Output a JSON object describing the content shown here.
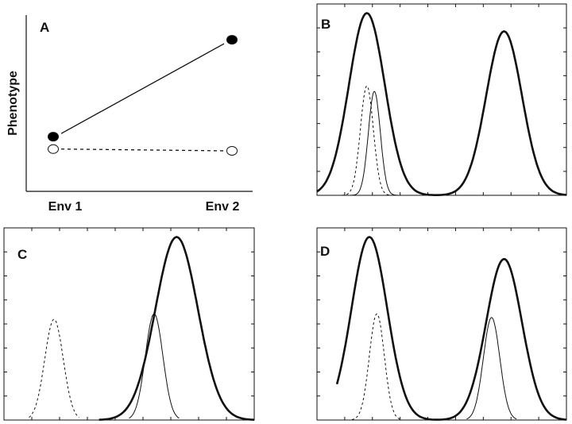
{
  "chart_data": [
    {
      "panel": "A",
      "type": "scatter",
      "categories": [
        "Env 1",
        "Env 2"
      ],
      "ylabel": "Phenotype",
      "ylim": [
        0,
        10
      ],
      "series": [
        {
          "style": "filled-solid",
          "values": [
            3.1,
            8.6
          ]
        },
        {
          "style": "open-dashed",
          "values": [
            2.4,
            2.3
          ]
        }
      ]
    },
    {
      "panel": "B",
      "type": "line",
      "xlim": [
        0,
        10
      ],
      "ylim": [
        0,
        1.05
      ],
      "series": [
        {
          "style": "thick",
          "components": [
            {
              "mu": 2.0,
              "sigma": 0.72,
              "amp": 1.0
            },
            {
              "mu": 7.5,
              "sigma": 0.72,
              "amp": 0.9
            }
          ],
          "xrange": [
            0,
            10
          ]
        },
        {
          "style": "dashed",
          "components": [
            {
              "mu": 2.0,
              "sigma": 0.26,
              "amp": 0.6
            }
          ],
          "xrange": [
            1.0,
            3.0
          ]
        },
        {
          "style": "thin",
          "components": [
            {
              "mu": 2.3,
              "sigma": 0.24,
              "amp": 0.57
            }
          ],
          "xrange": [
            1.3,
            3.3
          ]
        }
      ]
    },
    {
      "panel": "C",
      "type": "line",
      "xlim": [
        0,
        10
      ],
      "ylim": [
        0,
        1.05
      ],
      "series": [
        {
          "style": "thick",
          "components": [
            {
              "mu": 6.9,
              "sigma": 0.85,
              "amp": 1.0
            }
          ],
          "xrange": [
            3.8,
            10
          ]
        },
        {
          "style": "dashed",
          "components": [
            {
              "mu": 2.0,
              "sigma": 0.37,
              "amp": 0.55
            }
          ],
          "xrange": [
            1.0,
            3.0
          ]
        },
        {
          "style": "thin",
          "components": [
            {
              "mu": 6.0,
              "sigma": 0.35,
              "amp": 0.58
            }
          ],
          "xrange": [
            5.0,
            7.0
          ]
        }
      ]
    },
    {
      "panel": "D",
      "type": "line",
      "xlim": [
        0,
        10
      ],
      "ylim": [
        0,
        1.05
      ],
      "series": [
        {
          "style": "thick",
          "components": [
            {
              "mu": 2.1,
              "sigma": 0.72,
              "amp": 1.0
            },
            {
              "mu": 7.5,
              "sigma": 0.72,
              "amp": 0.88
            }
          ],
          "xrange": [
            0.8,
            10
          ]
        },
        {
          "style": "dashed",
          "components": [
            {
              "mu": 2.4,
              "sigma": 0.3,
              "amp": 0.58
            }
          ],
          "xrange": [
            1.4,
            3.4
          ]
        },
        {
          "style": "thin",
          "components": [
            {
              "mu": 7.0,
              "sigma": 0.33,
              "amp": 0.56
            }
          ],
          "xrange": [
            6.0,
            8.0
          ]
        }
      ]
    }
  ]
}
